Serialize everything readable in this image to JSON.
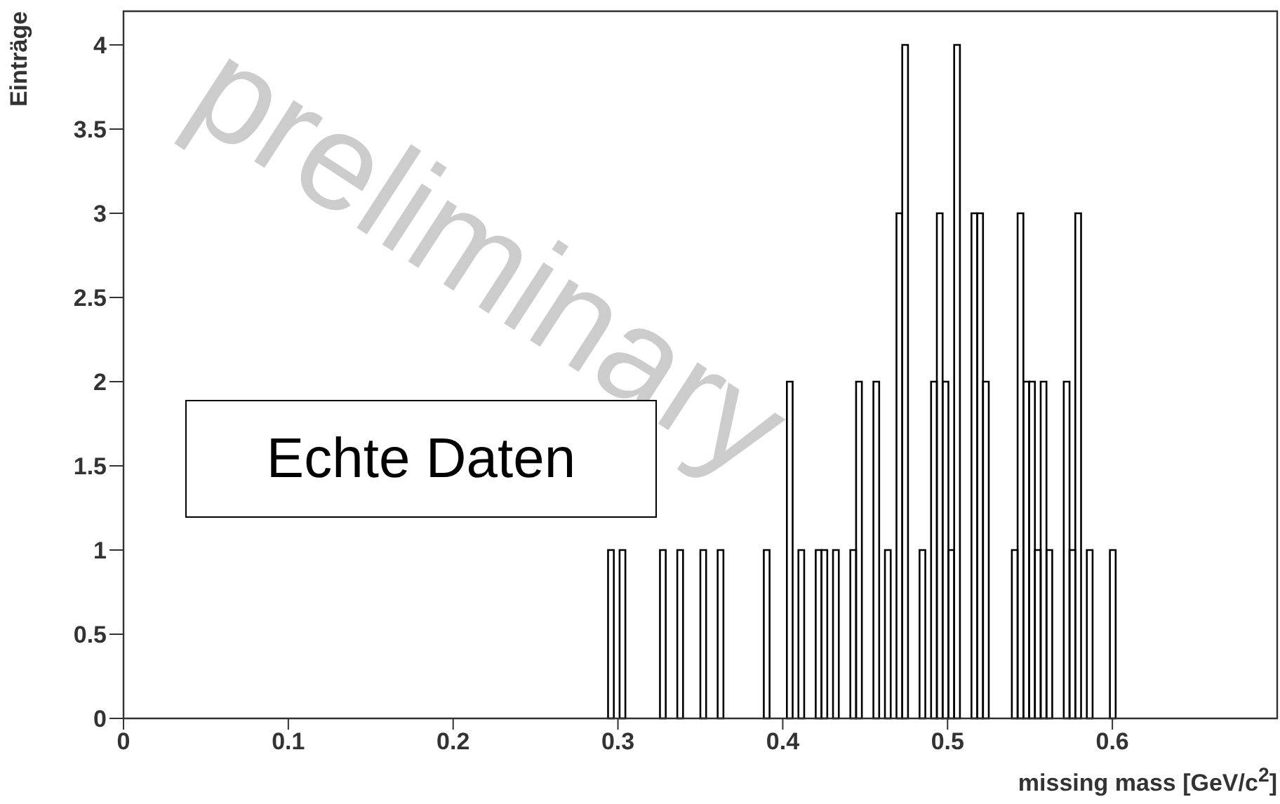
{
  "chart_data": {
    "type": "histogram",
    "xlabel": "missing mass [GeV/c$^{2}$]",
    "ylabel": "Einträge",
    "bins": [
      0.28,
      0.2835,
      0.287,
      0.2905,
      0.294,
      0.2975,
      0.301,
      0.3045,
      0.308,
      0.3115,
      0.315,
      0.3185,
      0.322,
      0.3255,
      0.329,
      0.3325,
      0.336,
      0.3395,
      0.343,
      0.3465,
      0.35,
      0.3535,
      0.357,
      0.3605,
      0.364,
      0.3675,
      0.371,
      0.3745,
      0.378,
      0.3815,
      0.385,
      0.3885,
      0.392,
      0.3955,
      0.399,
      0.4025,
      0.406,
      0.4095,
      0.413,
      0.4165,
      0.42,
      0.4235,
      0.427,
      0.4305,
      0.434,
      0.4375,
      0.441,
      0.4445,
      0.448,
      0.4515,
      0.455,
      0.4585,
      0.462,
      0.4655,
      0.469,
      0.4725,
      0.476,
      0.4795,
      0.483,
      0.4865,
      0.49,
      0.4935,
      0.497,
      0.5005,
      0.504,
      0.5075,
      0.511,
      0.5145,
      0.518,
      0.5215,
      0.525,
      0.5285,
      0.532,
      0.5355,
      0.539,
      0.5425,
      0.546,
      0.5495,
      0.553,
      0.5565,
      0.56,
      0.5635,
      0.567,
      0.5705,
      0.574,
      0.5775,
      0.581,
      0.5845,
      0.588,
      0.5915,
      0.595,
      0.5985,
      0.602,
      0.6055
    ],
    "values": [
      0,
      0,
      0,
      0,
      1,
      0,
      1,
      0,
      0,
      0,
      0,
      0,
      0,
      1,
      0,
      0,
      1,
      0,
      0,
      0,
      1,
      0,
      0,
      1,
      0,
      0,
      0,
      0,
      0,
      0,
      0,
      1,
      0,
      0,
      0,
      2,
      0,
      1,
      0,
      0,
      1,
      1,
      0,
      1,
      0,
      0,
      1,
      2,
      0,
      0,
      2,
      0,
      1,
      0,
      3,
      4,
      0,
      0,
      1,
      0,
      2,
      3,
      2,
      1,
      4,
      0,
      0,
      3,
      3,
      2,
      0,
      0,
      0,
      0,
      1,
      3,
      2,
      2,
      1,
      2,
      1,
      0,
      0,
      2,
      1,
      3,
      0,
      1,
      0,
      0,
      0,
      1,
      0
    ],
    "color": "#000000",
    "xlim": [
      0,
      0.7
    ],
    "xticks": [
      0,
      0.1,
      0.2,
      0.3,
      0.4,
      0.5,
      0.6
    ],
    "ylim": [
      0,
      4.2
    ],
    "yticks": [
      0,
      0.5,
      1,
      1.5,
      2,
      2.5,
      3,
      3.5,
      4
    ],
    "grid": false,
    "annotations": [
      "Echte Daten",
      "preliminary"
    ]
  }
}
